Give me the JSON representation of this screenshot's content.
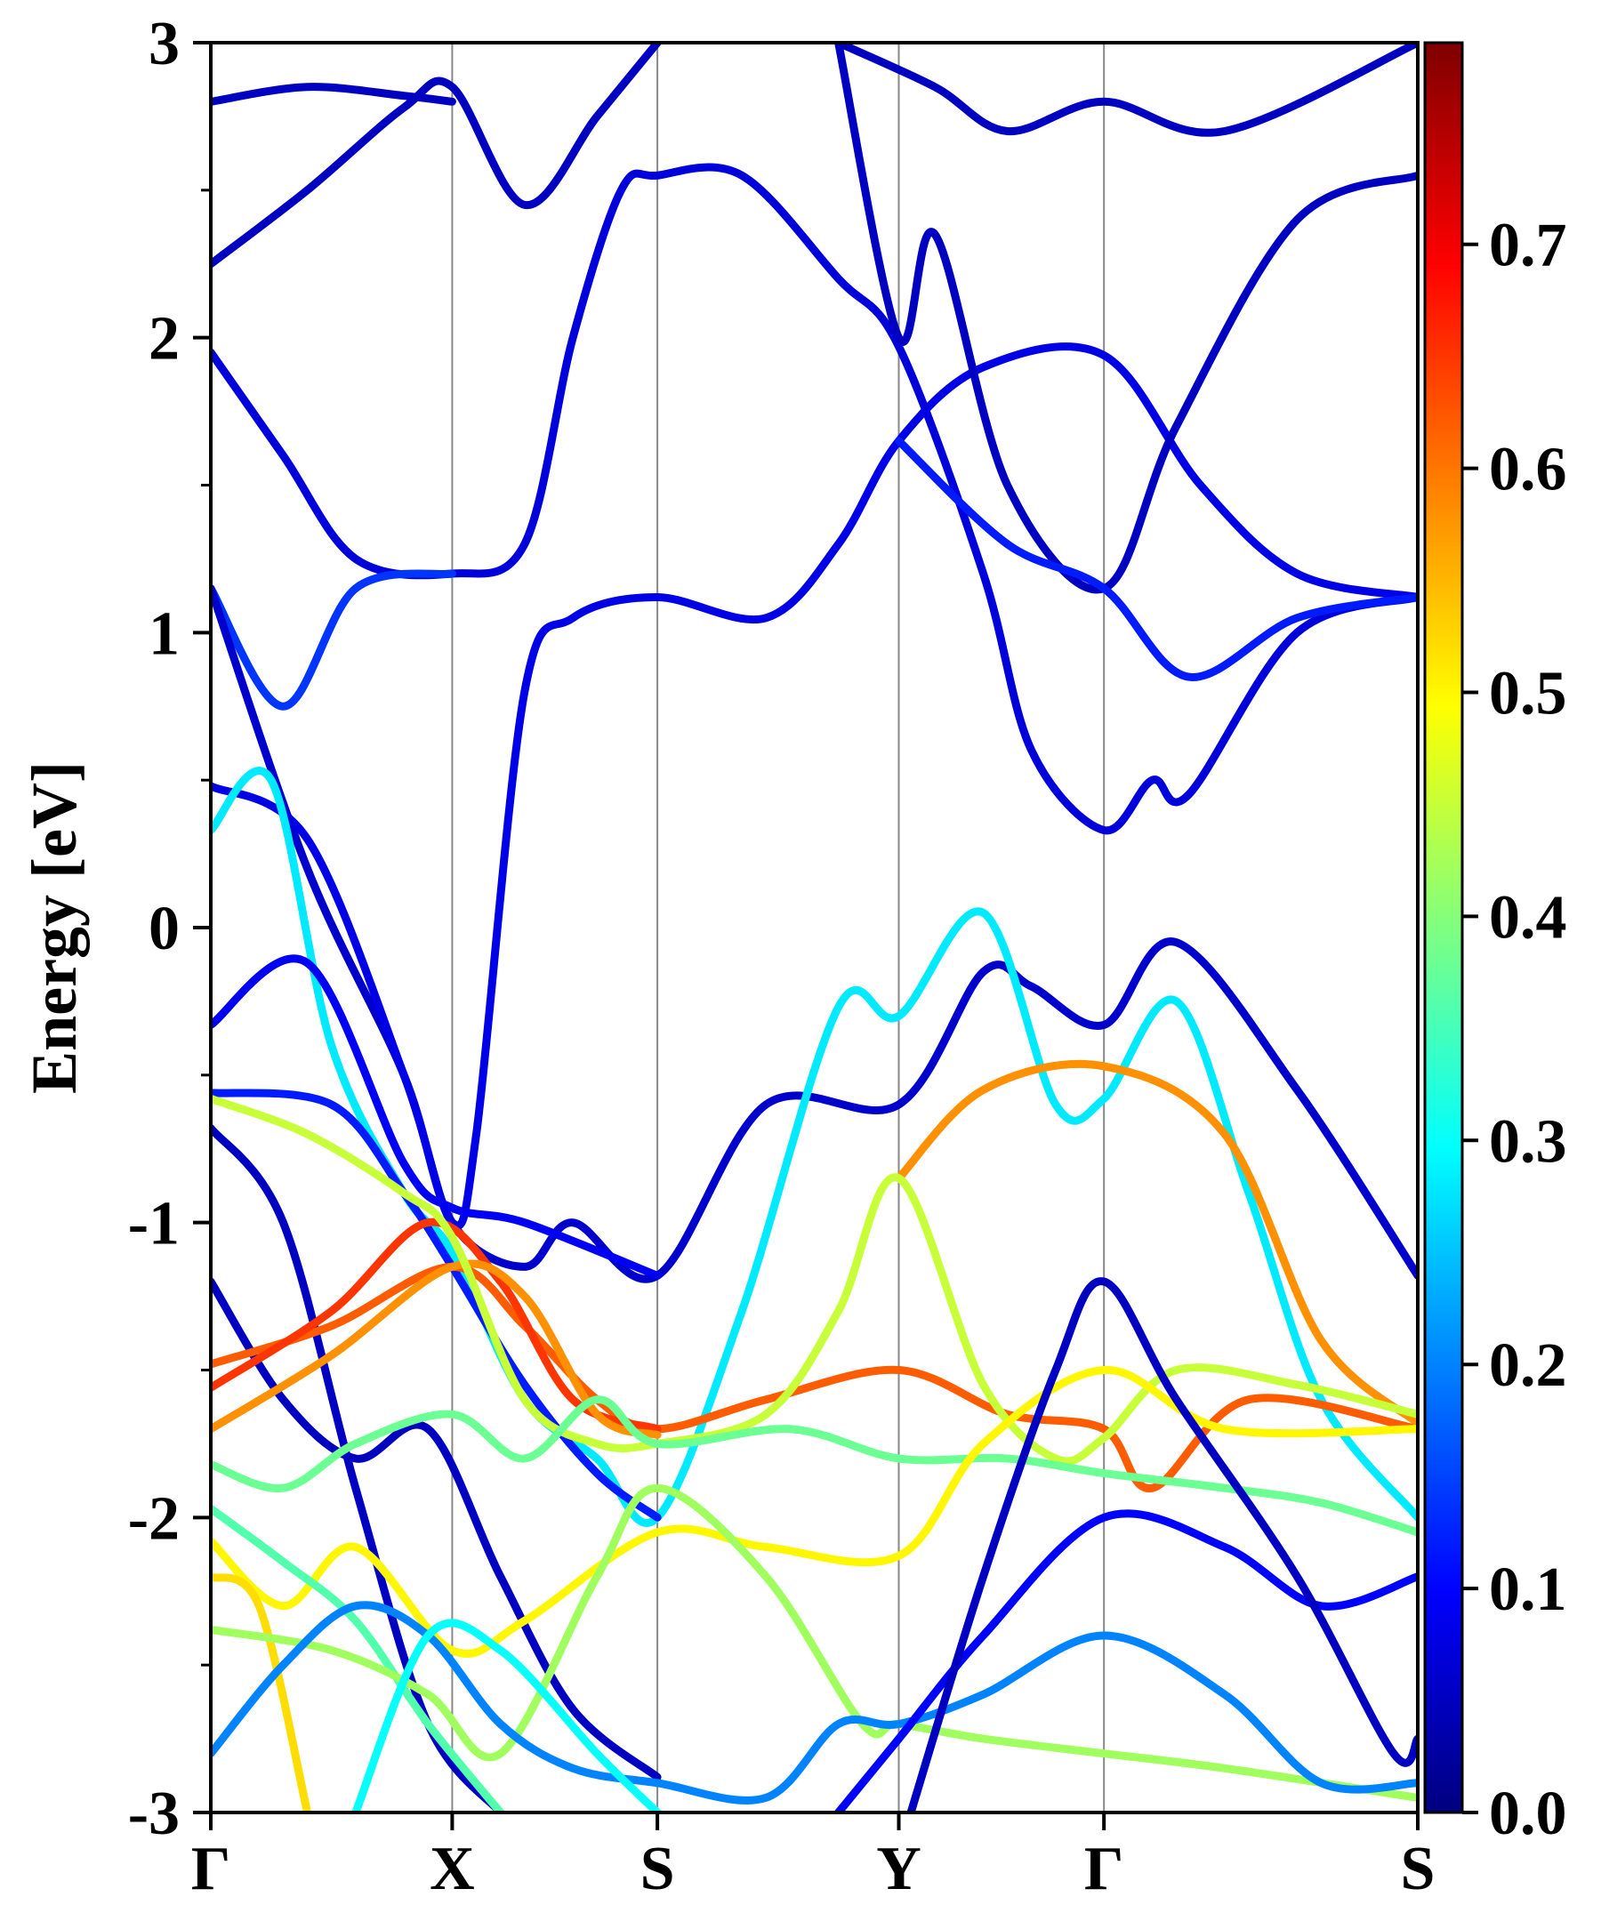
{
  "chart_data": {
    "type": "line",
    "title": "",
    "ylabel": "Energy [eV]",
    "xlabel": "",
    "ylim": [
      -3,
      3
    ],
    "k_points": [
      {
        "label": "Γ",
        "x": 0
      },
      {
        "label": "X",
        "x": 1
      },
      {
        "label": "S",
        "x": 1.85
      },
      {
        "label": "Y",
        "x": 2.85
      },
      {
        "label": "Γ",
        "x": 3.7
      },
      {
        "label": "S",
        "x": 5.0
      }
    ],
    "y_ticks": [
      "-3",
      "-2",
      "-1",
      "0",
      "1",
      "2",
      "3"
    ],
    "colorbar": {
      "colormap": "jet",
      "range": [
        0.0,
        0.79
      ],
      "ticks": [
        "0.0",
        "0.1",
        "0.2",
        "0.3",
        "0.4",
        "0.5",
        "0.6",
        "0.7"
      ]
    },
    "series": [
      {
        "c": 0.05,
        "points": [
          [
            0,
            2.8
          ],
          [
            0.4,
            2.85
          ],
          [
            0.8,
            2.82
          ],
          [
            1,
            2.8
          ]
        ]
      },
      {
        "c": 0.05,
        "points": [
          [
            0,
            2.25
          ],
          [
            0.4,
            2.5
          ],
          [
            0.8,
            2.78
          ],
          [
            1,
            2.85
          ],
          [
            1.3,
            2.45
          ],
          [
            1.6,
            2.75
          ],
          [
            1.85,
            3.0
          ]
        ]
      },
      {
        "c": 0.07,
        "points": [
          [
            0,
            1.95
          ],
          [
            0.3,
            1.6
          ],
          [
            0.6,
            1.25
          ],
          [
            1,
            1.2
          ],
          [
            1.3,
            1.3
          ],
          [
            1.5,
            2.0
          ],
          [
            1.7,
            2.5
          ],
          [
            1.85,
            2.55
          ],
          [
            2.2,
            2.55
          ],
          [
            2.6,
            2.2
          ],
          [
            2.85,
            1.97
          ],
          [
            3.2,
            1.2
          ],
          [
            3.4,
            0.6
          ],
          [
            3.7,
            0.33
          ],
          [
            3.9,
            0.5
          ],
          [
            4.05,
            0.45
          ],
          [
            4.5,
            1.0
          ],
          [
            5.0,
            1.12
          ]
        ]
      },
      {
        "c": 0.14,
        "points": [
          [
            0,
            1.15
          ],
          [
            0.3,
            0.75
          ],
          [
            0.6,
            1.15
          ],
          [
            1,
            1.2
          ]
        ]
      },
      {
        "c": 0.06,
        "points": [
          [
            0,
            1.15
          ],
          [
            0.4,
            0.2
          ],
          [
            0.8,
            -0.5
          ],
          [
            1.0,
            -1.0
          ],
          [
            1.3,
            -1.15
          ],
          [
            1.5,
            -1.0
          ],
          [
            1.85,
            -1.18
          ],
          [
            2.3,
            -0.6
          ],
          [
            2.85,
            -0.6
          ],
          [
            3.2,
            -0.15
          ],
          [
            3.4,
            -0.2
          ],
          [
            3.7,
            -0.33
          ],
          [
            4.0,
            -0.05
          ],
          [
            4.5,
            -0.55
          ],
          [
            5.0,
            -1.18
          ]
        ]
      },
      {
        "c": 0.08,
        "points": [
          [
            0,
            0.48
          ],
          [
            0.4,
            0.3
          ],
          [
            0.8,
            -0.5
          ],
          [
            1,
            -1.0
          ],
          [
            1.1,
            -0.7
          ],
          [
            1.3,
            0.8
          ],
          [
            1.5,
            1.05
          ],
          [
            1.85,
            1.12
          ],
          [
            2.3,
            1.05
          ],
          [
            2.6,
            1.3
          ],
          [
            2.85,
            1.65
          ],
          [
            3.2,
            1.9
          ],
          [
            3.7,
            1.94
          ],
          [
            4.1,
            1.5
          ],
          [
            4.5,
            1.2
          ],
          [
            5.0,
            1.12
          ]
        ]
      },
      {
        "c": 0.28,
        "points": [
          [
            0,
            0.33
          ],
          [
            0.25,
            0.5
          ],
          [
            0.5,
            -0.4
          ],
          [
            0.8,
            -0.9
          ],
          [
            1,
            -1.1
          ],
          [
            1.3,
            -1.6
          ],
          [
            1.6,
            -1.8
          ],
          [
            1.85,
            -2.0
          ],
          [
            2.2,
            -1.3
          ],
          [
            2.6,
            -0.27
          ],
          [
            2.85,
            -0.3
          ],
          [
            3.2,
            0.05
          ],
          [
            3.5,
            -0.6
          ],
          [
            3.7,
            -0.58
          ],
          [
            4.0,
            -0.25
          ],
          [
            4.3,
            -0.9
          ],
          [
            4.6,
            -1.6
          ],
          [
            5.0,
            -2.0
          ]
        ]
      },
      {
        "c": 0.09,
        "points": [
          [
            0,
            -0.33
          ],
          [
            0.4,
            -0.12
          ],
          [
            0.8,
            -0.8
          ],
          [
            1,
            -0.95
          ],
          [
            1.3,
            -1.0
          ],
          [
            1.85,
            -1.18
          ]
        ]
      },
      {
        "c": 0.12,
        "points": [
          [
            0,
            -0.56
          ],
          [
            0.5,
            -0.6
          ],
          [
            0.8,
            -0.9
          ],
          [
            1,
            -1.15
          ],
          [
            1.3,
            -1.55
          ],
          [
            1.6,
            -1.85
          ],
          [
            1.85,
            -2.0
          ]
        ]
      },
      {
        "c": 0.05,
        "points": [
          [
            0,
            -0.68
          ],
          [
            0.3,
            -1.0
          ],
          [
            0.6,
            -1.9
          ],
          [
            0.9,
            -2.7
          ],
          [
            1.2,
            -3.0
          ]
        ]
      },
      {
        "c": 0.05,
        "points": [
          [
            0,
            -1.2
          ],
          [
            0.3,
            -1.6
          ],
          [
            0.6,
            -1.8
          ],
          [
            0.9,
            -1.7
          ],
          [
            1.2,
            -2.2
          ],
          [
            1.5,
            -2.65
          ],
          [
            1.85,
            -2.88
          ]
        ]
      },
      {
        "c": 0.62,
        "points": [
          [
            0,
            -1.48
          ],
          [
            0.5,
            -1.35
          ],
          [
            1,
            -1.15
          ],
          [
            1.3,
            -1.35
          ],
          [
            1.6,
            -1.6
          ],
          [
            1.85,
            -1.7
          ],
          [
            2.3,
            -1.6
          ],
          [
            2.85,
            -1.5
          ],
          [
            3.3,
            -1.65
          ],
          [
            3.7,
            -1.7
          ],
          [
            3.9,
            -1.9
          ],
          [
            4.3,
            -1.6
          ],
          [
            5.0,
            -1.7
          ]
        ]
      },
      {
        "c": 0.65,
        "points": [
          [
            0,
            -1.56
          ],
          [
            0.5,
            -1.3
          ],
          [
            0.9,
            -1.0
          ],
          [
            1.2,
            -1.2
          ],
          [
            1.5,
            -1.6
          ],
          [
            1.85,
            -1.7
          ]
        ]
      },
      {
        "c": 0.58,
        "points": [
          [
            0,
            -1.7
          ],
          [
            0.5,
            -1.45
          ],
          [
            1,
            -1.15
          ],
          [
            1.3,
            -1.25
          ],
          [
            1.6,
            -1.65
          ],
          [
            1.85,
            -1.72
          ]
        ]
      },
      {
        "c": 0.58,
        "points": [
          [
            2.85,
            -0.85
          ],
          [
            3.2,
            -0.55
          ],
          [
            3.7,
            -0.47
          ],
          [
            4.2,
            -0.7
          ],
          [
            4.6,
            -1.4
          ],
          [
            5.0,
            -1.68
          ]
        ]
      },
      {
        "c": 0.45,
        "points": [
          [
            0,
            -0.58
          ],
          [
            0.4,
            -0.7
          ],
          [
            0.8,
            -0.9
          ],
          [
            1,
            -1.05
          ],
          [
            1.3,
            -1.6
          ],
          [
            1.6,
            -1.75
          ],
          [
            1.85,
            -1.75
          ],
          [
            2.3,
            -1.65
          ],
          [
            2.6,
            -1.3
          ],
          [
            2.85,
            -0.85
          ],
          [
            3.2,
            -1.55
          ],
          [
            3.5,
            -1.8
          ],
          [
            3.7,
            -1.73
          ],
          [
            4.0,
            -1.5
          ],
          [
            4.5,
            -1.55
          ],
          [
            5.0,
            -1.65
          ]
        ]
      },
      {
        "c": 0.38,
        "points": [
          [
            0,
            -1.82
          ],
          [
            0.3,
            -1.9
          ],
          [
            0.6,
            -1.75
          ],
          [
            1,
            -1.65
          ],
          [
            1.3,
            -1.8
          ],
          [
            1.6,
            -1.6
          ],
          [
            1.85,
            -1.75
          ],
          [
            2.4,
            -1.7
          ],
          [
            2.85,
            -1.8
          ],
          [
            3.3,
            -1.8
          ],
          [
            3.7,
            -1.85
          ],
          [
            4.2,
            -1.9
          ],
          [
            4.6,
            -1.95
          ],
          [
            5.0,
            -2.05
          ]
        ]
      },
      {
        "c": 0.5,
        "points": [
          [
            0,
            -2.08
          ],
          [
            0.3,
            -2.3
          ],
          [
            0.6,
            -2.1
          ],
          [
            1,
            -2.45
          ],
          [
            1.3,
            -2.35
          ],
          [
            1.85,
            -2.05
          ],
          [
            2.3,
            -2.1
          ],
          [
            2.85,
            -2.13
          ],
          [
            3.2,
            -1.75
          ],
          [
            3.7,
            -1.5
          ],
          [
            4.2,
            -1.7
          ],
          [
            5.0,
            -1.7
          ]
        ]
      },
      {
        "c": 0.52,
        "points": [
          [
            0,
            -2.2
          ],
          [
            0.2,
            -2.3
          ],
          [
            0.4,
            -3.0
          ]
        ]
      },
      {
        "c": 0.36,
        "points": [
          [
            0,
            -1.97
          ],
          [
            0.3,
            -2.15
          ],
          [
            0.6,
            -2.35
          ],
          [
            0.9,
            -2.7
          ],
          [
            1.2,
            -3.0
          ]
        ]
      },
      {
        "c": 0.42,
        "points": [
          [
            0,
            -2.38
          ],
          [
            0.5,
            -2.45
          ],
          [
            0.9,
            -2.6
          ],
          [
            1.2,
            -2.8
          ],
          [
            1.6,
            -2.2
          ],
          [
            1.85,
            -1.9
          ],
          [
            2.3,
            -2.2
          ],
          [
            2.7,
            -2.7
          ],
          [
            2.85,
            -2.7
          ],
          [
            3.2,
            -2.75
          ],
          [
            3.7,
            -2.8
          ],
          [
            4.2,
            -2.85
          ],
          [
            5.0,
            -2.95
          ]
        ]
      },
      {
        "c": 0.2,
        "points": [
          [
            0,
            -2.8
          ],
          [
            0.3,
            -2.5
          ],
          [
            0.6,
            -2.3
          ],
          [
            0.9,
            -2.4
          ],
          [
            1.2,
            -2.7
          ],
          [
            1.5,
            -2.85
          ],
          [
            1.85,
            -2.9
          ],
          [
            2.3,
            -2.95
          ],
          [
            2.6,
            -2.7
          ],
          [
            2.85,
            -2.7
          ],
          [
            3.2,
            -2.6
          ],
          [
            3.7,
            -2.4
          ],
          [
            4.2,
            -2.6
          ],
          [
            4.6,
            -2.9
          ],
          [
            5.0,
            -2.9
          ]
        ]
      },
      {
        "c": 0.3,
        "points": [
          [
            0.6,
            -3.0
          ],
          [
            0.9,
            -2.4
          ],
          [
            1.2,
            -2.45
          ],
          [
            1.6,
            -2.8
          ],
          [
            1.85,
            -3.0
          ]
        ]
      },
      {
        "c": 0.1,
        "points": [
          [
            2.6,
            -3.0
          ],
          [
            2.85,
            -2.75
          ],
          [
            3.2,
            -2.4
          ],
          [
            3.7,
            -2.0
          ],
          [
            4.2,
            -2.1
          ],
          [
            4.6,
            -2.3
          ],
          [
            5.0,
            -2.2
          ]
        ]
      },
      {
        "c": 0.05,
        "points": [
          [
            2.9,
            -3.0
          ],
          [
            3.2,
            -2.2
          ],
          [
            3.5,
            -1.5
          ],
          [
            3.7,
            -1.2
          ],
          [
            4.0,
            -1.6
          ],
          [
            4.5,
            -2.2
          ],
          [
            4.9,
            -2.8
          ],
          [
            5.0,
            -2.75
          ]
        ]
      },
      {
        "c": 0.05,
        "points": [
          [
            2.6,
            3.0
          ],
          [
            2.85,
            2.0
          ],
          [
            3.0,
            2.35
          ],
          [
            3.3,
            1.5
          ],
          [
            3.7,
            1.15
          ],
          [
            4.0,
            1.7
          ],
          [
            4.5,
            2.4
          ],
          [
            5.0,
            2.55
          ]
        ]
      },
      {
        "c": 0.05,
        "points": [
          [
            2.6,
            3.0
          ],
          [
            3.0,
            2.85
          ],
          [
            3.3,
            2.7
          ],
          [
            3.7,
            2.8
          ],
          [
            4.2,
            2.7
          ],
          [
            5.0,
            3.0
          ]
        ]
      },
      {
        "c": 0.12,
        "points": [
          [
            2.85,
            1.65
          ],
          [
            3.3,
            1.3
          ],
          [
            3.7,
            1.15
          ],
          [
            4.05,
            0.85
          ],
          [
            4.5,
            1.05
          ],
          [
            5.0,
            1.12
          ]
        ]
      }
    ]
  }
}
